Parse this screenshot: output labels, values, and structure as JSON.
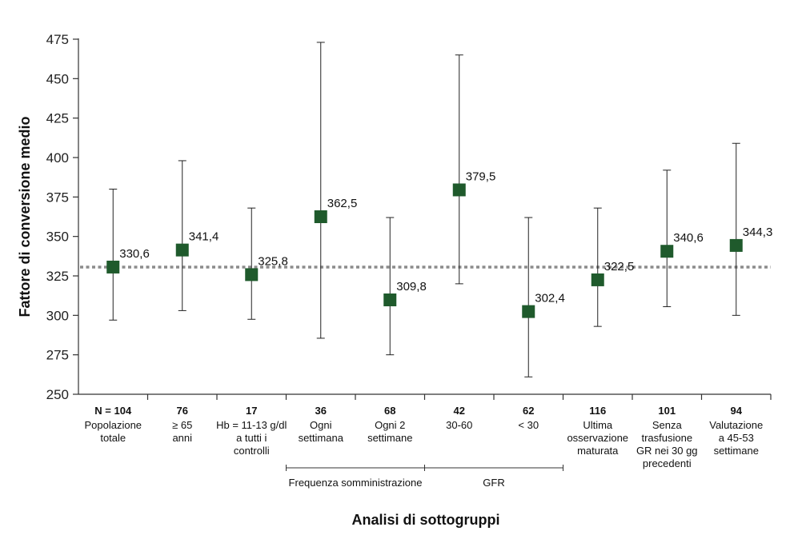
{
  "colors": {
    "marker": "#1f5a2c",
    "reference_line": "#8c8c8c",
    "axis": "#333333"
  },
  "chart_data": {
    "type": "scatter",
    "title": "",
    "xlabel": "Analisi di sottogruppi",
    "ylabel": "Fattore di conversione medio",
    "ylim": [
      250,
      475
    ],
    "yticks": [
      250,
      275,
      300,
      325,
      350,
      375,
      400,
      425,
      450,
      475
    ],
    "grid": false,
    "reference_value": 330.6,
    "categories": [
      {
        "n": "N = 104",
        "lines": [
          "Popolazione",
          "totale"
        ]
      },
      {
        "n": "76",
        "lines": [
          "≥ 65",
          "anni"
        ]
      },
      {
        "n": "17",
        "lines": [
          "Hb = 11-13 g/dl",
          "a tutti i",
          "controlli"
        ]
      },
      {
        "n": "36",
        "lines": [
          "Ogni",
          "settimana"
        ]
      },
      {
        "n": "68",
        "lines": [
          "Ogni 2",
          "settimane"
        ]
      },
      {
        "n": "42",
        "lines": [
          "30-60"
        ]
      },
      {
        "n": "62",
        "lines": [
          "< 30"
        ]
      },
      {
        "n": "116",
        "lines": [
          "Ultima",
          "osservazione",
          "maturata"
        ]
      },
      {
        "n": "101",
        "lines": [
          "Senza",
          "trasfusione",
          "GR nei 30 gg",
          "precedenti"
        ]
      },
      {
        "n": "94",
        "lines": [
          "Valutazione",
          "a 45-53",
          "settimane"
        ]
      }
    ],
    "values": [
      330.6,
      341.4,
      325.8,
      362.5,
      309.8,
      379.5,
      302.4,
      322.5,
      340.6,
      344.3
    ],
    "value_labels": [
      "330,6",
      "341,4",
      "325,8",
      "362,5",
      "309,8",
      "379,5",
      "302,4",
      "322,5",
      "340,6",
      "344,3"
    ],
    "lower": [
      297,
      303,
      297.5,
      285.5,
      275,
      320,
      261,
      293,
      305.5,
      300
    ],
    "upper": [
      380,
      398,
      368,
      473,
      362,
      465,
      362,
      368,
      392,
      409
    ],
    "groups": [
      {
        "label": "Frequenza somministrazione",
        "from_index": 3,
        "to_index": 4
      },
      {
        "label": "GFR",
        "from_index": 5,
        "to_index": 6
      }
    ]
  }
}
